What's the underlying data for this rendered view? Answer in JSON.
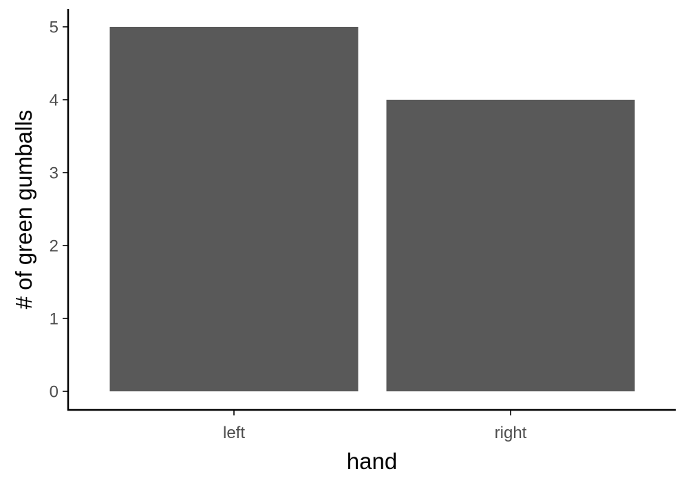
{
  "chart_data": {
    "type": "bar",
    "categories": [
      "left",
      "right"
    ],
    "values": [
      5,
      4
    ],
    "title": "",
    "xlabel": "hand",
    "ylabel": "# of green gumballs",
    "ylim": [
      0,
      5.25
    ],
    "yticks": [
      0,
      1,
      2,
      3,
      4,
      5
    ],
    "grid": false,
    "legend": "none",
    "colors": {
      "bar": "#595959",
      "axis": "#000000",
      "tick_text": "#4d4d4d",
      "background": "#ffffff"
    }
  }
}
